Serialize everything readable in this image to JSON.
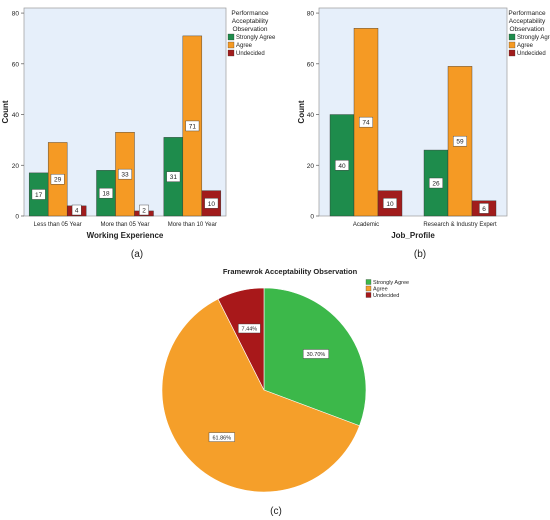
{
  "colors": {
    "strongly_agree": "#1e8c4c",
    "agree": "#f59a24",
    "undecided": "#a11c1c",
    "plot_bg": "#e6effa",
    "pie_strongly_agree": "#3cb84a",
    "pie_agree": "#f59f2a",
    "pie_undecided": "#a8181a"
  },
  "chart_data": [
    {
      "type": "bar",
      "panel_label": "(a)",
      "xlabel": "Working Experience",
      "ylabel": "Count",
      "legend_title": "Performance\nAcceptability\nObservation",
      "legend_placement": "top-right",
      "categories": [
        "Less than 05 Year",
        "More than 05 Year",
        "More than 10 Year"
      ],
      "series": [
        {
          "name": "Strongly Agree",
          "values": [
            17,
            18,
            31
          ]
        },
        {
          "name": "Agree",
          "values": [
            29,
            33,
            71
          ]
        },
        {
          "name": "Undecided",
          "values": [
            4,
            2,
            10
          ]
        }
      ],
      "yticks": [
        "0",
        "20",
        "40",
        "60",
        "80"
      ],
      "ylim": [
        0,
        82
      ],
      "grid": false
    },
    {
      "type": "bar",
      "panel_label": "(b)",
      "xlabel": "Job_Profile",
      "ylabel": "Count",
      "legend_title": "Performance\nAcceptability\nObservation",
      "legend_placement": "top-right",
      "categories": [
        "Academic",
        "Research & Industry Expert"
      ],
      "series": [
        {
          "name": "Strongly Agree",
          "values": [
            40,
            26
          ]
        },
        {
          "name": "Agree",
          "values": [
            74,
            59
          ]
        },
        {
          "name": "Undecided",
          "values": [
            10,
            6
          ]
        }
      ],
      "yticks": [
        "0",
        "20",
        "40",
        "60",
        "80"
      ],
      "ylim": [
        0,
        82
      ],
      "grid": false
    },
    {
      "type": "pie",
      "panel_label": "(c)",
      "title": "Framewrok Acceptability Observation",
      "legend_placement": "top-right",
      "slices": [
        {
          "name": "Strongly Agree",
          "value": 30.7,
          "label": "30.70%"
        },
        {
          "name": "Agree",
          "value": 61.86,
          "label": "61.86%"
        },
        {
          "name": "Undecided",
          "value": 7.44,
          "label": "7.44%"
        }
      ]
    }
  ]
}
